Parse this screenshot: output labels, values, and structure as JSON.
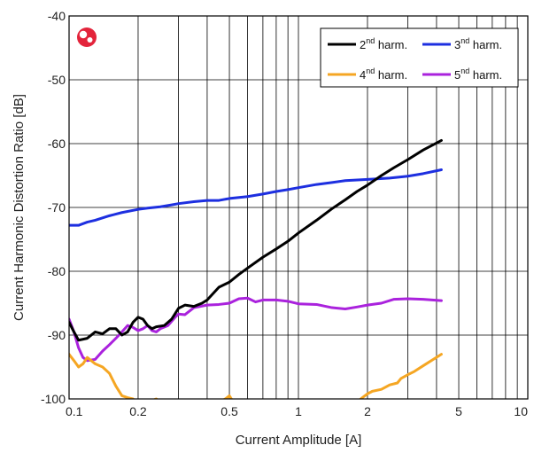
{
  "chart_data": {
    "type": "line",
    "title": "",
    "xlabel": "Current Amplitude [A]",
    "ylabel": "Current Harmonic Distortion Ratio [dB]",
    "xscale": "log",
    "xlim": [
      0.1,
      10
    ],
    "ylim": [
      -100,
      -40
    ],
    "grid": true,
    "legend_position": "top-right",
    "xticks": [
      {
        "value": 0.1,
        "label": "0.1"
      },
      {
        "value": 0.2,
        "label": "0.2"
      },
      {
        "value": 0.5,
        "label": "0.5"
      },
      {
        "value": 1,
        "label": "1"
      },
      {
        "value": 2,
        "label": "2"
      },
      {
        "value": 5,
        "label": "5"
      },
      {
        "value": 10,
        "label": "10"
      }
    ],
    "yticks": [
      {
        "value": -40,
        "label": "-40"
      },
      {
        "value": -50,
        "label": "-50"
      },
      {
        "value": -60,
        "label": "-60"
      },
      {
        "value": -70,
        "label": "-70"
      },
      {
        "value": -80,
        "label": "-80"
      },
      {
        "value": -90,
        "label": "-90"
      },
      {
        "value": -100,
        "label": "-100"
      }
    ],
    "series": [
      {
        "name_base": "2",
        "name_sup": "nd",
        "name_suffix": " harm.",
        "color": "#000000",
        "points": [
          [
            0.1,
            -88.0
          ],
          [
            0.105,
            -89.5
          ],
          [
            0.11,
            -90.8
          ],
          [
            0.12,
            -90.5
          ],
          [
            0.13,
            -89.5
          ],
          [
            0.14,
            -89.8
          ],
          [
            0.15,
            -89.0
          ],
          [
            0.16,
            -89.0
          ],
          [
            0.17,
            -90.0
          ],
          [
            0.18,
            -89.5
          ],
          [
            0.19,
            -88.0
          ],
          [
            0.2,
            -87.2
          ],
          [
            0.21,
            -87.5
          ],
          [
            0.22,
            -88.5
          ],
          [
            0.23,
            -89.0
          ],
          [
            0.24,
            -88.7
          ],
          [
            0.26,
            -88.5
          ],
          [
            0.28,
            -87.5
          ],
          [
            0.3,
            -85.8
          ],
          [
            0.32,
            -85.3
          ],
          [
            0.35,
            -85.5
          ],
          [
            0.38,
            -85.0
          ],
          [
            0.4,
            -84.5
          ],
          [
            0.45,
            -82.5
          ],
          [
            0.5,
            -81.7
          ],
          [
            0.55,
            -80.5
          ],
          [
            0.6,
            -79.5
          ],
          [
            0.7,
            -77.8
          ],
          [
            0.8,
            -76.5
          ],
          [
            0.9,
            -75.3
          ],
          [
            1.0,
            -74.0
          ],
          [
            1.2,
            -72.0
          ],
          [
            1.4,
            -70.2
          ],
          [
            1.6,
            -68.8
          ],
          [
            1.8,
            -67.5
          ],
          [
            2.0,
            -66.5
          ],
          [
            2.3,
            -65.0
          ],
          [
            2.6,
            -63.8
          ],
          [
            3.0,
            -62.5
          ],
          [
            3.5,
            -61.0
          ],
          [
            4.2,
            -59.5
          ]
        ]
      },
      {
        "name_base": "3",
        "name_sup": "nd",
        "name_suffix": " harm.",
        "color": "#1d2fe0",
        "points": [
          [
            0.1,
            -72.8
          ],
          [
            0.11,
            -72.8
          ],
          [
            0.12,
            -72.3
          ],
          [
            0.13,
            -72.0
          ],
          [
            0.15,
            -71.3
          ],
          [
            0.17,
            -70.8
          ],
          [
            0.2,
            -70.3
          ],
          [
            0.22,
            -70.1
          ],
          [
            0.25,
            -69.9
          ],
          [
            0.28,
            -69.6
          ],
          [
            0.3,
            -69.4
          ],
          [
            0.35,
            -69.1
          ],
          [
            0.4,
            -68.9
          ],
          [
            0.45,
            -68.9
          ],
          [
            0.5,
            -68.6
          ],
          [
            0.6,
            -68.3
          ],
          [
            0.7,
            -67.9
          ],
          [
            0.8,
            -67.5
          ],
          [
            0.9,
            -67.2
          ],
          [
            1.0,
            -66.9
          ],
          [
            1.2,
            -66.4
          ],
          [
            1.4,
            -66.1
          ],
          [
            1.6,
            -65.8
          ],
          [
            2.0,
            -65.6
          ],
          [
            2.5,
            -65.4
          ],
          [
            3.0,
            -65.1
          ],
          [
            3.5,
            -64.7
          ],
          [
            4.2,
            -64.1
          ]
        ]
      },
      {
        "name_base": "4",
        "name_sup": "nd",
        "name_suffix": " harm.",
        "color": "#f5a623",
        "points": [
          [
            0.1,
            -93.0
          ],
          [
            0.105,
            -94.0
          ],
          [
            0.11,
            -95.0
          ],
          [
            0.115,
            -94.5
          ],
          [
            0.12,
            -93.5
          ],
          [
            0.13,
            -94.5
          ],
          [
            0.14,
            -95.0
          ],
          [
            0.15,
            -96.0
          ],
          [
            0.16,
            -98.0
          ],
          [
            0.17,
            -99.5
          ],
          [
            0.18,
            -99.8
          ],
          [
            0.19,
            -100.0
          ],
          [
            0.2,
            -100.8
          ],
          [
            0.22,
            -100.5
          ],
          [
            0.24,
            -100.0
          ],
          [
            0.25,
            -100.5
          ],
          [
            0.3,
            -101.0
          ],
          [
            0.4,
            -101.0
          ],
          [
            0.45,
            -100.5
          ],
          [
            0.48,
            -100.0
          ],
          [
            0.5,
            -99.5
          ],
          [
            0.52,
            -100.5
          ],
          [
            0.6,
            -101.5
          ],
          [
            0.8,
            -102.0
          ],
          [
            1.0,
            -102.0
          ],
          [
            1.3,
            -101.5
          ],
          [
            1.6,
            -101.0
          ],
          [
            1.8,
            -100.5
          ],
          [
            1.9,
            -99.8
          ],
          [
            2.0,
            -99.2
          ],
          [
            2.1,
            -98.8
          ],
          [
            2.3,
            -98.5
          ],
          [
            2.5,
            -97.8
          ],
          [
            2.7,
            -97.5
          ],
          [
            2.8,
            -96.8
          ],
          [
            3.0,
            -96.2
          ],
          [
            3.2,
            -95.7
          ],
          [
            3.5,
            -94.8
          ],
          [
            4.2,
            -93.0
          ]
        ]
      },
      {
        "name_base": "5",
        "name_sup": "nd",
        "name_suffix": " harm.",
        "color": "#aa22dd",
        "points": [
          [
            0.1,
            -87.5
          ],
          [
            0.105,
            -89.5
          ],
          [
            0.11,
            -92.0
          ],
          [
            0.115,
            -93.5
          ],
          [
            0.12,
            -94.0
          ],
          [
            0.13,
            -93.8
          ],
          [
            0.14,
            -92.5
          ],
          [
            0.15,
            -91.5
          ],
          [
            0.16,
            -90.5
          ],
          [
            0.17,
            -89.5
          ],
          [
            0.18,
            -88.5
          ],
          [
            0.19,
            -88.8
          ],
          [
            0.2,
            -89.3
          ],
          [
            0.21,
            -89.0
          ],
          [
            0.22,
            -88.5
          ],
          [
            0.23,
            -89.3
          ],
          [
            0.24,
            -89.5
          ],
          [
            0.25,
            -89.0
          ],
          [
            0.27,
            -88.5
          ],
          [
            0.29,
            -87.2
          ],
          [
            0.3,
            -86.7
          ],
          [
            0.32,
            -86.8
          ],
          [
            0.35,
            -85.7
          ],
          [
            0.4,
            -85.3
          ],
          [
            0.45,
            -85.2
          ],
          [
            0.5,
            -85.0
          ],
          [
            0.55,
            -84.3
          ],
          [
            0.6,
            -84.2
          ],
          [
            0.65,
            -84.8
          ],
          [
            0.7,
            -84.5
          ],
          [
            0.8,
            -84.5
          ],
          [
            0.9,
            -84.7
          ],
          [
            1.0,
            -85.1
          ],
          [
            1.2,
            -85.2
          ],
          [
            1.4,
            -85.7
          ],
          [
            1.6,
            -85.9
          ],
          [
            1.8,
            -85.6
          ],
          [
            2.0,
            -85.3
          ],
          [
            2.3,
            -85.0
          ],
          [
            2.6,
            -84.4
          ],
          [
            3.0,
            -84.3
          ],
          [
            3.5,
            -84.4
          ],
          [
            4.2,
            -84.6
          ]
        ]
      }
    ]
  }
}
